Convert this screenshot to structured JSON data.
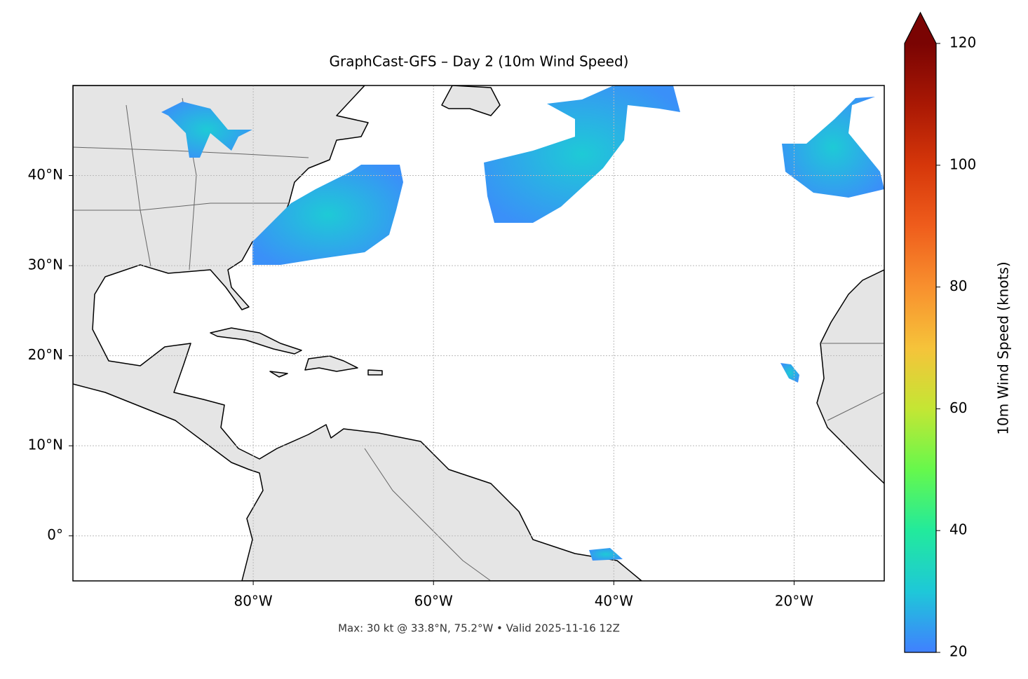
{
  "title": "GraphCast-GFS – Day 2 (10m Wind Speed)",
  "caption": "Max: 30 kt @ 33.8°N, 75.2°W • Valid 2025-11-16 12Z",
  "map": {
    "xlim": [
      -100,
      -10
    ],
    "ylim": [
      -5,
      50
    ],
    "xticks": [
      {
        "value": -80,
        "label": "80°W"
      },
      {
        "value": -60,
        "label": "60°W"
      },
      {
        "value": -40,
        "label": "40°W"
      },
      {
        "value": -20,
        "label": "20°W"
      }
    ],
    "yticks": [
      {
        "value": 0,
        "label": "0°"
      },
      {
        "value": 10,
        "label": "10°N"
      },
      {
        "value": 20,
        "label": "20°N"
      },
      {
        "value": 30,
        "label": "30°N"
      },
      {
        "value": 40,
        "label": "40°N"
      }
    ],
    "grid": true
  },
  "colorbar": {
    "label": "10m Wind Speed (knots)",
    "lim": [
      20,
      120
    ],
    "ticks": [
      20,
      40,
      60,
      80,
      100,
      120
    ]
  }
}
